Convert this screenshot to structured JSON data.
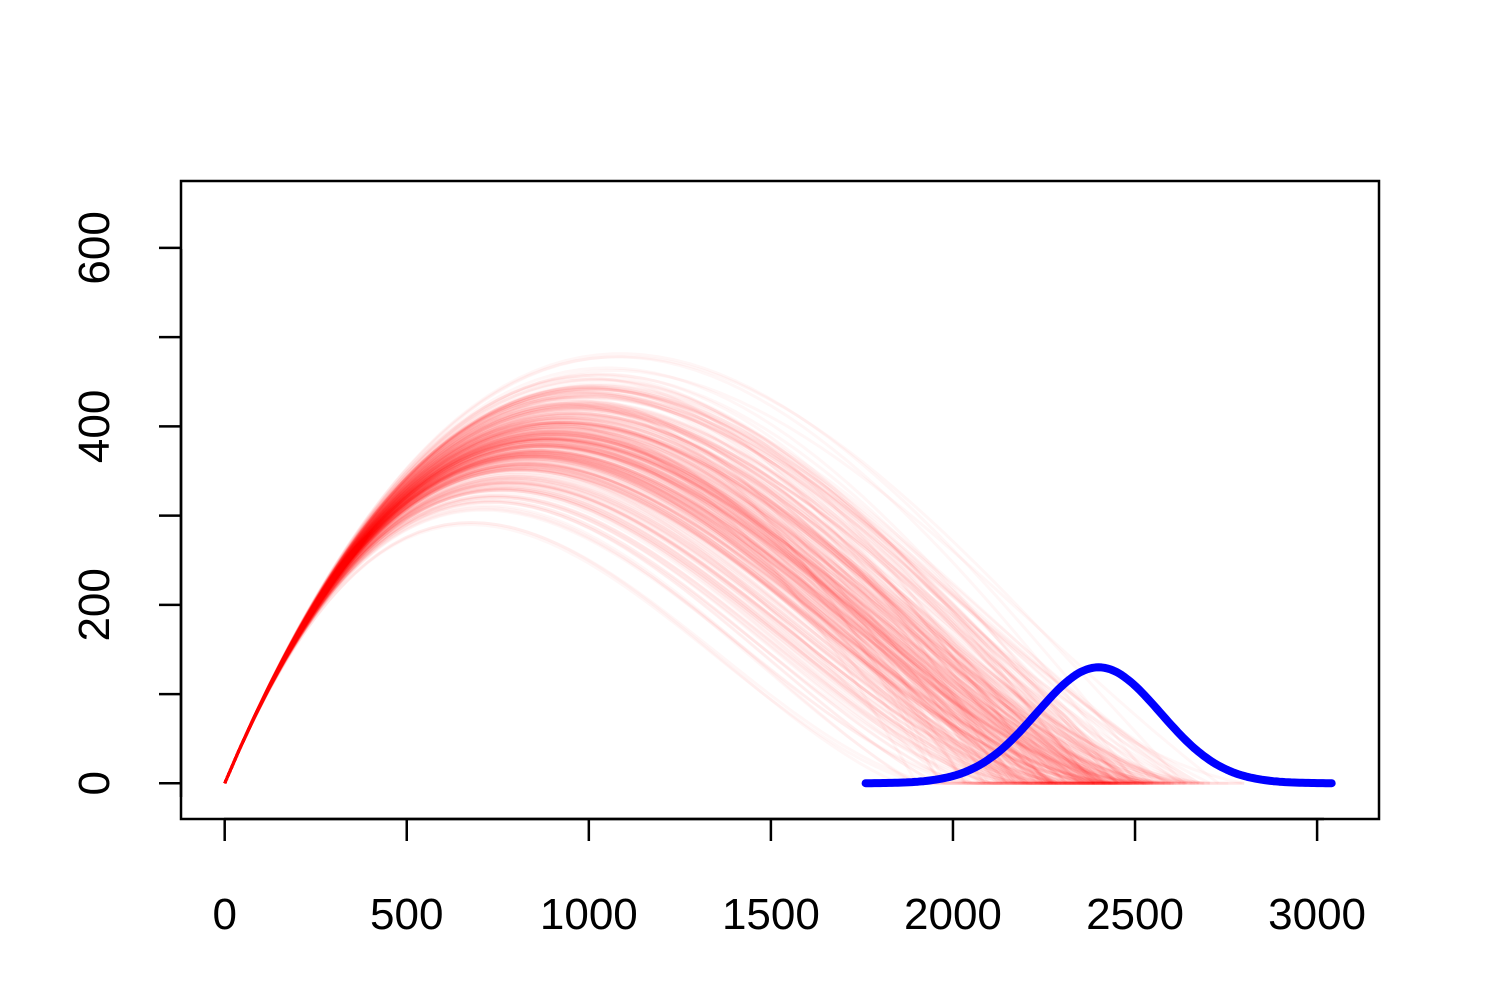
{
  "chart_data": {
    "type": "line",
    "title": "",
    "xlabel": "",
    "ylabel": "",
    "xlim": [
      -120,
      3170
    ],
    "ylim": [
      -40,
      675
    ],
    "x_ticks": [
      0,
      500,
      1000,
      1500,
      2000,
      2500,
      3000
    ],
    "x_tick_labels": [
      "0",
      "500",
      "1000",
      "1500",
      "2000",
      "2500",
      "3000"
    ],
    "y_ticks": [
      0,
      100,
      200,
      300,
      400,
      500,
      600
    ],
    "y_tick_labels": [
      "0",
      "",
      "200",
      "",
      "400",
      "",
      "600"
    ],
    "grid": false,
    "legend": "none",
    "series": [
      {
        "kind": "trajectory-ensemble",
        "color": "#FF0000",
        "count": 350,
        "launch_slope": 0.97,
        "peak_height_range": [
          290,
          490
        ],
        "landing_x_range": [
          1900,
          2800
        ],
        "typical_landing_x": 2400,
        "opacity": 0.035
      },
      {
        "kind": "density-curve",
        "color": "#0000FF",
        "x_range": [
          1760,
          3040
        ],
        "mean": 2400,
        "sd": 170,
        "peak": 130
      }
    ]
  }
}
